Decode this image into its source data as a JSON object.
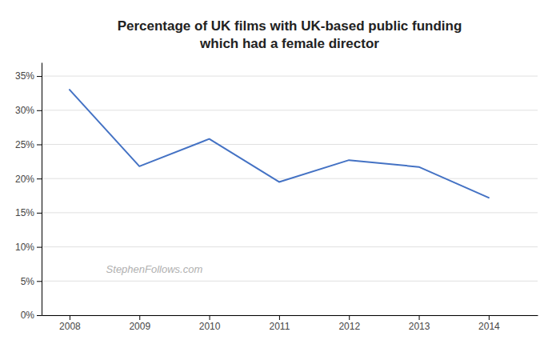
{
  "chart_data": {
    "type": "line",
    "title": "Percentage of UK films with UK-based public funding\nwhich had a female director",
    "x": [
      2008,
      2009,
      2010,
      2011,
      2012,
      2013,
      2014
    ],
    "values": [
      33,
      21.8,
      25.8,
      19.5,
      22.7,
      21.7,
      17.2
    ],
    "color": "#4472C4",
    "xlim": [
      2007.6,
      2014.7
    ],
    "xticks": [
      2008,
      2009,
      2010,
      2011,
      2012,
      2013,
      2014
    ],
    "ylim": [
      0,
      37
    ],
    "yticks": [
      {
        "value": 0,
        "label": "0%"
      },
      {
        "value": 5,
        "label": "5%"
      },
      {
        "value": 10,
        "label": "10%"
      },
      {
        "value": 15,
        "label": "15%"
      },
      {
        "value": 20,
        "label": "20%"
      },
      {
        "value": 25,
        "label": "25%"
      },
      {
        "value": 30,
        "label": "30%"
      },
      {
        "value": 35,
        "label": "35%"
      }
    ],
    "grid": true,
    "annotation": "StephenFollows.com"
  }
}
